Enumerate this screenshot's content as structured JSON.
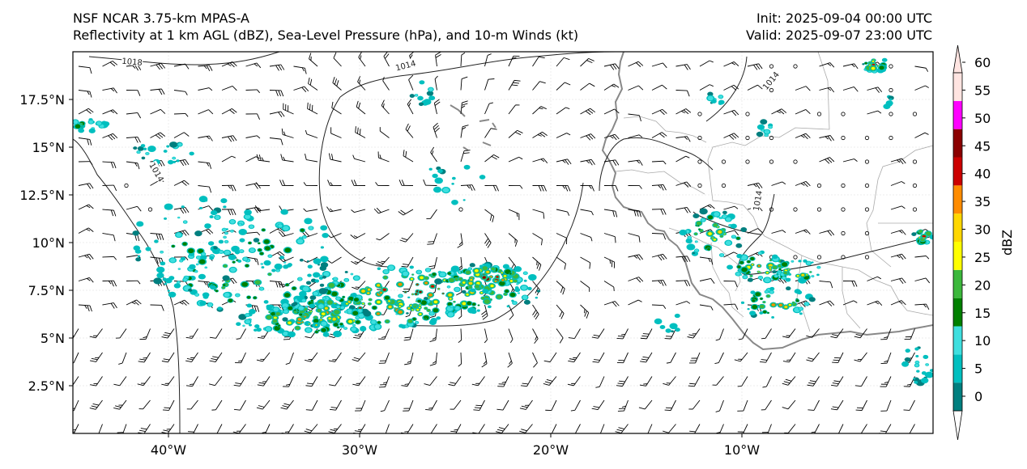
{
  "title": {
    "line1_left": "NSF NCAR 3.75-km MPAS-A",
    "line2_left": "Reflectivity at 1 km AGL (dBZ), Sea-Level Pressure (hPa), and 10-m Winds (kt)",
    "line1_right": "Init: 2025-09-04 00:00 UTC",
    "line2_right": "Valid: 2025-09-07 23:00 UTC"
  },
  "map": {
    "lon_range": [
      -45,
      0
    ],
    "lat_range": [
      0,
      20
    ],
    "lat_ticks": [
      {
        "value": 17.5,
        "label": "17.5°N"
      },
      {
        "value": 15,
        "label": "15°N"
      },
      {
        "value": 12.5,
        "label": "12.5°N"
      },
      {
        "value": 10,
        "label": "10°N"
      },
      {
        "value": 7.5,
        "label": "7.5°N"
      },
      {
        "value": 5,
        "label": "5°N"
      },
      {
        "value": 2.5,
        "label": "2.5°N"
      }
    ],
    "lon_ticks": [
      {
        "value": -40,
        "label": "40°W"
      },
      {
        "value": -30,
        "label": "30°W"
      },
      {
        "value": -20,
        "label": "20°W"
      },
      {
        "value": -10,
        "label": "10°W"
      }
    ],
    "contour_labels": [
      {
        "text": "1018",
        "lon": -41.9,
        "lat": 19.5,
        "angle": 5
      },
      {
        "text": "1014",
        "lon": -27.6,
        "lat": 19.3,
        "angle": -15
      },
      {
        "text": "1014",
        "lon": -40.6,
        "lat": 13.7,
        "angle": 60
      },
      {
        "text": "1014",
        "lon": -8.5,
        "lat": 18.5,
        "angle": -50
      },
      {
        "text": "1014",
        "lon": -9.2,
        "lat": 12.2,
        "angle": -80
      }
    ]
  },
  "colorbar": {
    "title": "dBZ",
    "levels": [
      0,
      5,
      10,
      15,
      20,
      25,
      30,
      35,
      40,
      45,
      50,
      55,
      60
    ],
    "colors": [
      "#007f7f",
      "#00bfbf",
      "#3fdfdf",
      "#008000",
      "#3cb83c",
      "#ffff00",
      "#ffd700",
      "#ff8c00",
      "#cc0000",
      "#8b0000",
      "#ff00ff",
      "#ffe4e1"
    ],
    "tick_labels": [
      "0",
      "5",
      "10",
      "15",
      "20",
      "25",
      "30",
      "35",
      "40",
      "45",
      "50",
      "55",
      "60"
    ]
  }
}
